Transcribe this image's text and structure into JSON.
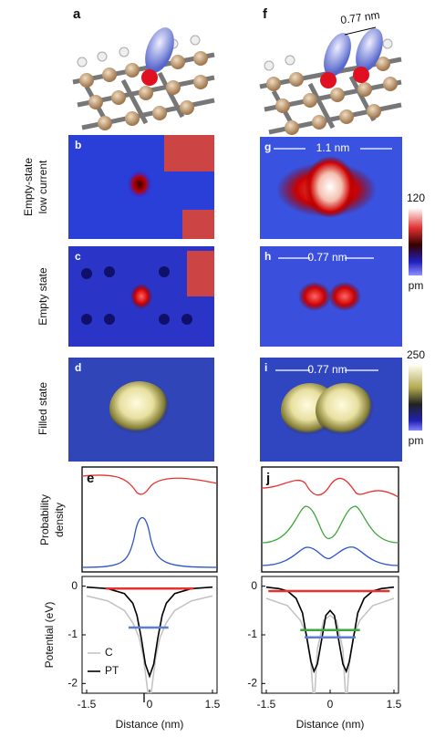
{
  "panel_labels": [
    "a",
    "b",
    "c",
    "d",
    "e",
    "f",
    "g",
    "h",
    "i",
    "j"
  ],
  "row_labels": [
    [
      "Empty-state",
      "low current"
    ],
    [
      "Empty state"
    ],
    [
      "Filled state"
    ]
  ],
  "dimension_labels": {
    "f": "0.77 nm",
    "g": "1.1 nm",
    "h": "0.77 nm",
    "i": "0.77 nm"
  },
  "colorbars": [
    {
      "max": 120,
      "unit": "pm"
    },
    {
      "max": 250,
      "unit": "pm"
    }
  ],
  "density_ylabel": [
    "Probability",
    "density"
  ],
  "chart_data": [
    {
      "type": "line",
      "ylabel": "Potential (eV)",
      "xlabel": "Distance (nm)",
      "xlim": [
        -1.5,
        1.5
      ],
      "ylim": [
        -2.2,
        0.2
      ],
      "xticks": [
        -1.5,
        0,
        1.5
      ],
      "yticks": [
        0,
        -1,
        -2
      ],
      "legend": true,
      "series": [
        {
          "name": "C",
          "color": "#c4c4c4",
          "x": [
            -1.5,
            -1.0,
            -0.6,
            -0.4,
            -0.25,
            -0.15,
            -0.08,
            -0.04,
            0.04,
            0.08,
            0.15,
            0.25,
            0.4,
            0.6,
            1.0,
            1.5
          ],
          "values": [
            -0.2,
            -0.3,
            -0.5,
            -0.75,
            -1.05,
            -1.45,
            -1.9,
            -2.2,
            -2.2,
            -1.9,
            -1.45,
            -1.05,
            -0.75,
            -0.5,
            -0.3,
            -0.2
          ]
        },
        {
          "name": "PT",
          "color": "#000000",
          "x": [
            -1.5,
            -1.0,
            -0.6,
            -0.4,
            -0.3,
            -0.2,
            -0.1,
            0,
            0.1,
            0.2,
            0.3,
            0.4,
            0.6,
            1.0,
            1.5
          ],
          "values": [
            -0.02,
            -0.05,
            -0.15,
            -0.35,
            -0.6,
            -1.05,
            -1.6,
            -1.85,
            -1.6,
            -1.05,
            -0.6,
            -0.35,
            -0.15,
            -0.05,
            -0.02
          ]
        },
        {
          "color": "#e8322f",
          "x": [
            -1.05,
            1.05
          ],
          "values": [
            -0.05,
            -0.05
          ]
        },
        {
          "color": "#5b7fd6",
          "x": [
            -0.5,
            0.45
          ],
          "values": [
            -0.85,
            -0.85
          ]
        }
      ]
    },
    {
      "type": "line",
      "xlabel": "Distance (nm)",
      "xlim": [
        -1.5,
        1.5
      ],
      "ylim": [
        -2.2,
        0.2
      ],
      "xticks": [
        -1.5,
        0,
        1.5
      ],
      "yticks": [
        0,
        -1,
        -2
      ],
      "legend": false,
      "series": [
        {
          "color": "#c4c4c4",
          "x": [
            -1.5,
            -1.0,
            -0.7,
            -0.55,
            -0.45,
            -0.4,
            -0.36,
            -0.3,
            -0.15,
            0,
            0.15,
            0.3,
            0.36,
            0.4,
            0.45,
            0.55,
            0.7,
            1.0,
            1.5
          ],
          "values": [
            -0.25,
            -0.4,
            -0.7,
            -1.0,
            -1.6,
            -2.2,
            -2.2,
            -1.3,
            -0.7,
            -0.6,
            -0.7,
            -1.3,
            -2.2,
            -2.2,
            -1.6,
            -1.0,
            -0.7,
            -0.4,
            -0.25
          ]
        },
        {
          "color": "#000000",
          "x": [
            -1.5,
            -1.2,
            -1.0,
            -0.8,
            -0.65,
            -0.55,
            -0.45,
            -0.38,
            -0.3,
            -0.2,
            -0.1,
            0,
            0.1,
            0.2,
            0.3,
            0.38,
            0.45,
            0.55,
            0.65,
            0.8,
            1.0,
            1.2,
            1.5
          ],
          "values": [
            -0.02,
            -0.05,
            -0.1,
            -0.25,
            -0.55,
            -1.05,
            -1.55,
            -1.75,
            -1.6,
            -1.1,
            -0.6,
            -0.5,
            -0.6,
            -1.1,
            -1.6,
            -1.75,
            -1.55,
            -1.05,
            -0.55,
            -0.25,
            -0.1,
            -0.05,
            -0.02
          ]
        },
        {
          "color": "#e8322f",
          "x": [
            -1.45,
            1.4
          ],
          "values": [
            -0.1,
            -0.1
          ]
        },
        {
          "color": "#3fa83a",
          "x": [
            -0.7,
            0.7
          ],
          "values": [
            -0.9,
            -0.9
          ]
        },
        {
          "color": "#5b7fd6",
          "x": [
            -0.6,
            0.6
          ],
          "values": [
            -1.05,
            -1.05
          ]
        }
      ]
    }
  ]
}
